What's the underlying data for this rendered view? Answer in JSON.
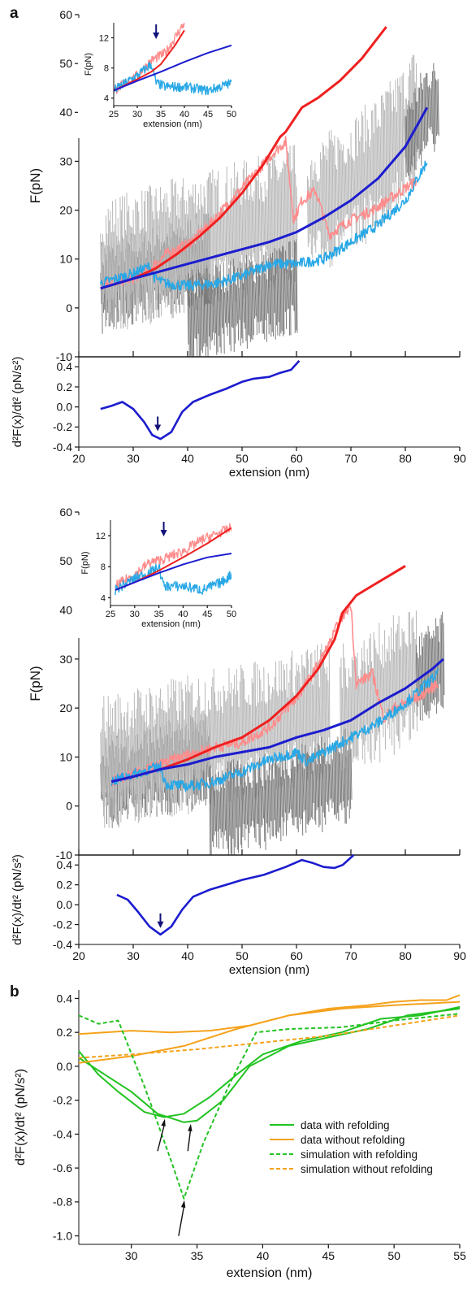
{
  "figure": {
    "panel_a_label": "a",
    "panel_b_label": "b",
    "colors": {
      "noise_light": "#b8b8b8",
      "noise_dark": "#7a7a7a",
      "red": "#ef2020",
      "pink": "#ff8c8c",
      "blue": "#1c1ccf",
      "cyan": "#29a8e6",
      "green": "#22c322",
      "orange": "#f5a21b",
      "arrow_blue": "#12127a"
    }
  },
  "chart_data": [
    {
      "id": "a-top-force",
      "type": "line",
      "xlabel": "",
      "ylabel": "F(pN)",
      "xlim": [
        20,
        90
      ],
      "ylim": [
        -10,
        60
      ],
      "x_ticks": [
        20,
        30,
        40,
        50,
        60,
        70,
        80,
        90
      ],
      "y_ticks": [
        -10,
        0,
        10,
        20,
        30,
        40,
        50,
        60
      ],
      "series": [
        {
          "role": "red",
          "x": [
            24,
            30,
            34,
            38,
            42,
            46,
            50,
            54,
            57,
            58,
            61,
            64,
            68,
            72,
            76.5
          ],
          "y": [
            4,
            6,
            8,
            11,
            14.5,
            18.5,
            23.5,
            29.5,
            35,
            36,
            41,
            43,
            46.5,
            51,
            57.5
          ]
        },
        {
          "role": "blue",
          "x": [
            24,
            30,
            35,
            40,
            45,
            50,
            55,
            60,
            65,
            70,
            75,
            80,
            84
          ],
          "y": [
            4,
            6,
            7.5,
            9,
            10.5,
            12,
            13.5,
            15.5,
            18.5,
            22,
            26.5,
            33,
            41
          ]
        },
        {
          "role": "pink",
          "x": [
            24,
            30,
            33,
            36,
            40,
            44,
            48,
            52,
            56,
            58,
            59.5,
            61,
            63.5,
            66,
            70,
            74,
            78,
            82
          ],
          "y": [
            5,
            6,
            8,
            11,
            13,
            17,
            22,
            27,
            32,
            34,
            18,
            22,
            24,
            15,
            18,
            20,
            23,
            26
          ]
        },
        {
          "role": "cyan",
          "x": [
            24,
            30,
            33,
            34,
            36,
            40,
            45,
            50,
            55,
            60,
            65,
            70,
            75,
            80,
            84
          ],
          "y": [
            5,
            7,
            8.5,
            6,
            5,
            4.5,
            5,
            6.5,
            9,
            9,
            10,
            13.5,
            17,
            22,
            30
          ]
        }
      ],
      "noise": [
        {
          "role": "dark",
          "x_range": [
            24,
            44
          ]
        },
        {
          "role": "light",
          "x_range": [
            24,
            60
          ]
        },
        {
          "role": "dark",
          "x_range": [
            40,
            60
          ],
          "dy": -11
        },
        {
          "role": "light",
          "x_range": [
            62,
            82
          ],
          "dy": -1
        },
        {
          "role": "dark",
          "x_range": [
            80,
            86
          ]
        }
      ],
      "inset": {
        "xlabel": "extension (nm)",
        "ylabel": "F(pN)",
        "xlim": [
          25,
          50
        ],
        "ylim": [
          3,
          14
        ],
        "x_ticks": [
          25,
          30,
          35,
          40,
          45,
          50
        ],
        "y_ticks": [
          4,
          8,
          12
        ],
        "arrow_x": 34,
        "series": [
          {
            "role": "red",
            "x": [
              25,
              30,
              33,
              35,
              38,
              40
            ],
            "y": [
              5,
              6.5,
              7.5,
              8.5,
              11,
              13
            ]
          },
          {
            "role": "blue",
            "x": [
              25,
              30,
              35,
              40,
              45,
              50
            ],
            "y": [
              5,
              6.3,
              7.5,
              8.8,
              10,
              11
            ]
          },
          {
            "role": "pink",
            "x": [
              25,
              30,
              33,
              36,
              38,
              40
            ],
            "y": [
              5,
              7,
              9,
              10,
              12,
              14
            ]
          },
          {
            "role": "cyan",
            "x": [
              25,
              30,
              33,
              34,
              36,
              40,
              45,
              50
            ],
            "y": [
              5,
              7,
              8.5,
              6,
              5.5,
              5.5,
              5,
              6
            ]
          }
        ]
      }
    },
    {
      "id": "a-top-derivative",
      "type": "line",
      "xlabel": "extension (nm)",
      "ylabel": "d²F(x)/dt² (pN/s²)",
      "xlim": [
        20,
        90
      ],
      "ylim": [
        -0.4,
        0.5
      ],
      "x_ticks": [
        20,
        30,
        40,
        50,
        60,
        70,
        80,
        90
      ],
      "y_ticks": [
        -0.4,
        -0.2,
        0.0,
        0.2,
        0.4
      ],
      "arrow_x": 34.5,
      "series": [
        {
          "role": "blue",
          "x": [
            24,
            26,
            28,
            30,
            32,
            33.5,
            35,
            37,
            39,
            41,
            44,
            47,
            50,
            52,
            55,
            57,
            59,
            60.5
          ],
          "y": [
            -0.02,
            0.01,
            0.05,
            -0.02,
            -0.15,
            -0.28,
            -0.32,
            -0.25,
            -0.05,
            0.05,
            0.12,
            0.18,
            0.25,
            0.28,
            0.3,
            0.34,
            0.37,
            0.46
          ]
        }
      ]
    },
    {
      "id": "a-bottom-force",
      "type": "line",
      "xlabel": "",
      "ylabel": "F(pN)",
      "xlim": [
        20,
        90
      ],
      "ylim": [
        -10,
        60
      ],
      "x_ticks": [
        20,
        30,
        40,
        50,
        60,
        70,
        80,
        90
      ],
      "y_ticks": [
        -10,
        0,
        10,
        20,
        30,
        40,
        50,
        60
      ],
      "series": [
        {
          "role": "red",
          "x": [
            26,
            30,
            35,
            40,
            45,
            50,
            55,
            60,
            64,
            67,
            68.5,
            71,
            74,
            77,
            80
          ],
          "y": [
            5,
            6,
            7.5,
            9.5,
            12,
            14,
            17.5,
            22.5,
            28,
            34,
            39.5,
            43,
            45,
            47,
            49
          ]
        },
        {
          "role": "blue",
          "x": [
            26,
            30,
            35,
            40,
            45,
            50,
            55,
            60,
            65,
            70,
            75,
            80,
            85,
            87
          ],
          "y": [
            5,
            6,
            7.5,
            8.5,
            10,
            11,
            12,
            14,
            15.5,
            17.5,
            21,
            24,
            28,
            30
          ]
        },
        {
          "role": "pink",
          "x": [
            26,
            30,
            35,
            40,
            45,
            50,
            55,
            60,
            63,
            66,
            68,
            70,
            71,
            74,
            76,
            78,
            82,
            86
          ],
          "y": [
            5,
            6.5,
            8.5,
            10.5,
            12,
            13,
            16,
            22,
            27,
            33,
            38,
            41,
            25,
            27,
            18,
            20,
            22,
            25
          ]
        },
        {
          "role": "cyan",
          "x": [
            26,
            30,
            33,
            35,
            36,
            40,
            45,
            50,
            55,
            60,
            62,
            65,
            70,
            75,
            80,
            86
          ],
          "y": [
            5,
            6.5,
            7.5,
            8,
            4.5,
            4,
            5,
            7,
            9.5,
            11,
            9,
            11,
            14,
            17,
            21,
            27
          ]
        }
      ],
      "noise": [
        {
          "role": "dark",
          "x_range": [
            24,
            44
          ]
        },
        {
          "role": "light",
          "x_range": [
            24,
            66
          ]
        },
        {
          "role": "dark",
          "x_range": [
            44,
            70
          ],
          "dy": -11
        },
        {
          "role": "light",
          "x_range": [
            68,
            82
          ],
          "dy": -2
        },
        {
          "role": "dark",
          "x_range": [
            82,
            87
          ]
        }
      ],
      "inset": {
        "xlabel": "extension (nm)",
        "ylabel": "F(pN)",
        "xlim": [
          25,
          50
        ],
        "ylim": [
          3,
          14
        ],
        "x_ticks": [
          25,
          30,
          35,
          40,
          45,
          50
        ],
        "y_ticks": [
          4,
          8,
          12
        ],
        "arrow_x": 36,
        "series": [
          {
            "role": "red",
            "x": [
              26,
              30,
              35,
              40,
              45,
              50
            ],
            "y": [
              5,
              6,
              7.5,
              9.2,
              11,
              13
            ]
          },
          {
            "role": "blue",
            "x": [
              26,
              30,
              35,
              40,
              45,
              50
            ],
            "y": [
              5,
              6,
              7.2,
              8.3,
              9.2,
              9.7
            ]
          },
          {
            "role": "pink",
            "x": [
              26,
              30,
              33,
              36,
              40,
              44,
              48,
              50
            ],
            "y": [
              5.5,
              7,
              8.5,
              9,
              10,
              11.5,
              12.5,
              13
            ]
          },
          {
            "role": "cyan",
            "x": [
              26,
              30,
              34,
              35,
              36,
              40,
              44,
              48,
              50
            ],
            "y": [
              5,
              6.5,
              7.5,
              8,
              5.5,
              5.5,
              5,
              6,
              7
            ]
          }
        ]
      }
    },
    {
      "id": "a-bottom-derivative",
      "type": "line",
      "xlabel": "extension (nm)",
      "ylabel": "d²F(x)/dt² (pN/s²)",
      "xlim": [
        20,
        90
      ],
      "ylim": [
        -0.4,
        0.5
      ],
      "x_ticks": [
        20,
        30,
        40,
        50,
        60,
        70,
        80,
        90
      ],
      "y_ticks": [
        -0.4,
        -0.2,
        0.0,
        0.2,
        0.4
      ],
      "arrow_x": 35,
      "series": [
        {
          "role": "blue",
          "x": [
            27,
            29,
            31,
            33,
            35,
            37,
            39,
            41,
            44,
            47,
            50,
            54,
            58,
            61,
            63,
            65,
            67,
            68.5,
            70.5
          ],
          "y": [
            0.1,
            0.05,
            -0.08,
            -0.22,
            -0.3,
            -0.22,
            -0.05,
            0.08,
            0.15,
            0.2,
            0.25,
            0.3,
            0.38,
            0.45,
            0.42,
            0.38,
            0.37,
            0.4,
            0.5
          ]
        }
      ]
    },
    {
      "id": "b",
      "type": "line",
      "xlabel": "extension (nm)",
      "ylabel": "d²F(x)/dt² (pN/s²)",
      "xlim": [
        26,
        55
      ],
      "ylim": [
        -1.05,
        0.45
      ],
      "x_ticks": [
        30,
        35,
        40,
        45,
        50,
        55
      ],
      "y_ticks": [
        -1.0,
        -0.8,
        -0.6,
        -0.4,
        -0.2,
        0.0,
        0.2,
        0.4
      ],
      "arrows_x": [
        32.5,
        34.5,
        34
      ],
      "series": [
        {
          "name": "data with refolding",
          "role": "green",
          "dash": false,
          "x": [
            26,
            27.5,
            29,
            31,
            32.5,
            34,
            36,
            38,
            40,
            43,
            46,
            49,
            52,
            55
          ],
          "y": [
            0.09,
            -0.05,
            -0.15,
            -0.27,
            -0.3,
            -0.28,
            -0.18,
            -0.05,
            0.07,
            0.15,
            0.2,
            0.28,
            0.3,
            0.35
          ]
        },
        {
          "name": "",
          "role": "green",
          "dash": false,
          "x": [
            26,
            28,
            30,
            32,
            34,
            35,
            37,
            39,
            42,
            45,
            48,
            51,
            55
          ],
          "y": [
            0.05,
            -0.05,
            -0.15,
            -0.28,
            -0.33,
            -0.32,
            -0.2,
            0.0,
            0.12,
            0.17,
            0.22,
            0.3,
            0.34
          ]
        },
        {
          "name": "data without refolding",
          "role": "orange",
          "dash": false,
          "x": [
            26,
            30,
            33,
            36,
            39,
            42,
            45,
            48,
            50,
            52,
            54,
            55
          ],
          "y": [
            0.19,
            0.21,
            0.2,
            0.21,
            0.24,
            0.3,
            0.34,
            0.36,
            0.38,
            0.39,
            0.39,
            0.42
          ]
        },
        {
          "name": "",
          "role": "orange",
          "dash": false,
          "x": [
            26,
            30,
            34,
            38,
            42,
            46,
            50,
            55
          ],
          "y": [
            0.02,
            0.06,
            0.12,
            0.22,
            0.3,
            0.34,
            0.36,
            0.38
          ]
        },
        {
          "name": "simulation with refolding",
          "role": "green",
          "dash": true,
          "x": [
            26,
            27.5,
            29,
            31,
            33,
            34,
            35.5,
            37.5,
            39.5,
            42,
            46,
            50,
            55
          ],
          "y": [
            0.3,
            0.25,
            0.27,
            -0.12,
            -0.55,
            -0.78,
            -0.45,
            -0.1,
            0.2,
            0.22,
            0.23,
            0.27,
            0.31
          ]
        },
        {
          "name": "simulation without refolding",
          "role": "orange",
          "dash": true,
          "x": [
            26,
            30,
            35,
            40,
            45,
            50,
            55
          ],
          "y": [
            0.05,
            0.07,
            0.1,
            0.14,
            0.18,
            0.24,
            0.3
          ]
        }
      ],
      "legend": {
        "position": "lower-right"
      }
    }
  ]
}
